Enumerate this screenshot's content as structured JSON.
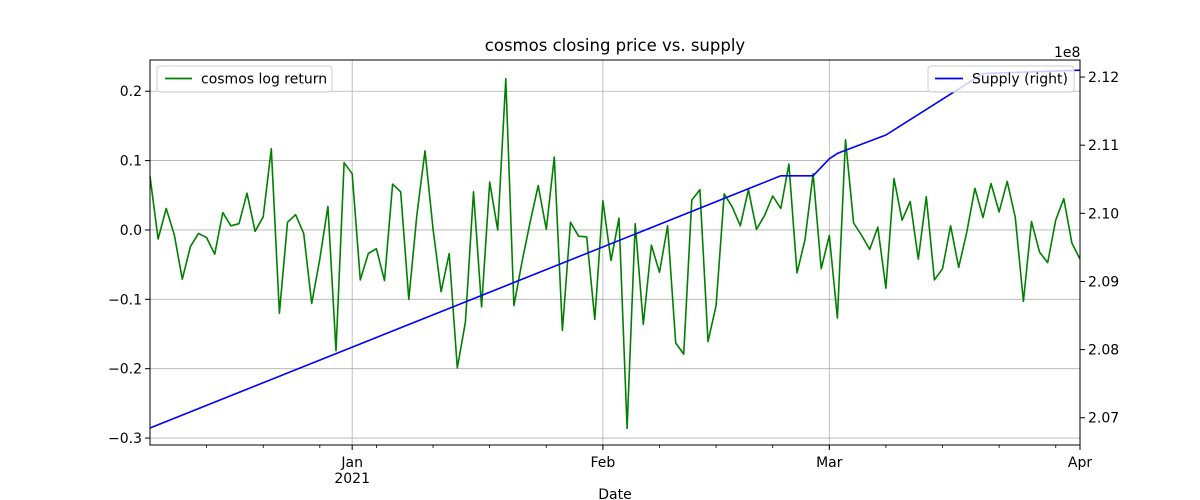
{
  "chart_data": {
    "type": "line",
    "title": "cosmos closing price vs. supply",
    "xlabel": "Date",
    "ylabel_left": "",
    "ylabel_right": "",
    "right_axis_offset_text": "1e8",
    "x_tick_labels": [
      "Jan",
      "Feb",
      "Mar",
      "Apr"
    ],
    "x_year_label": "2021",
    "left_ylim": [
      -0.31,
      0.245
    ],
    "left_yticks": [
      -0.3,
      -0.2,
      -0.1,
      0.0,
      0.1,
      0.2
    ],
    "left_ytick_labels": [
      "−0.3",
      "−0.2",
      "−0.1",
      "0.0",
      "0.1",
      "0.2"
    ],
    "right_ylim": [
      2.066,
      2.1225
    ],
    "right_yticks": [
      2.07,
      2.08,
      2.09,
      2.1,
      2.11,
      2.12
    ],
    "right_ytick_labels": [
      "2.07",
      "2.08",
      "2.09",
      "2.10",
      "2.11",
      "2.12"
    ],
    "grid": true,
    "legend_left": "top-left",
    "legend_right": "top-right",
    "series": [
      {
        "name": "cosmos log return",
        "axis": "left",
        "color": "#008000",
        "x": [
          "2020-12-07",
          "2020-12-08",
          "2020-12-09",
          "2020-12-10",
          "2020-12-11",
          "2020-12-12",
          "2020-12-13",
          "2020-12-14",
          "2020-12-15",
          "2020-12-16",
          "2020-12-17",
          "2020-12-18",
          "2020-12-19",
          "2020-12-20",
          "2020-12-21",
          "2020-12-22",
          "2020-12-23",
          "2020-12-24",
          "2020-12-25",
          "2020-12-26",
          "2020-12-27",
          "2020-12-28",
          "2020-12-29",
          "2020-12-30",
          "2020-12-31",
          "2021-01-01",
          "2021-01-02",
          "2021-01-03",
          "2021-01-04",
          "2021-01-05",
          "2021-01-06",
          "2021-01-07",
          "2021-01-08",
          "2021-01-09",
          "2021-01-10",
          "2021-01-11",
          "2021-01-12",
          "2021-01-13",
          "2021-01-14",
          "2021-01-15",
          "2021-01-16",
          "2021-01-17",
          "2021-01-18",
          "2021-01-19",
          "2021-01-20",
          "2021-01-21",
          "2021-01-22",
          "2021-01-23",
          "2021-01-24",
          "2021-01-25",
          "2021-01-26",
          "2021-01-27",
          "2021-01-28",
          "2021-01-29",
          "2021-01-30",
          "2021-01-31",
          "2021-02-01",
          "2021-02-02",
          "2021-02-03",
          "2021-02-04",
          "2021-02-05",
          "2021-02-06",
          "2021-02-07",
          "2021-02-08",
          "2021-02-09",
          "2021-02-10",
          "2021-02-11",
          "2021-02-12",
          "2021-02-13",
          "2021-02-14",
          "2021-02-15",
          "2021-02-16",
          "2021-02-17",
          "2021-02-18",
          "2021-02-19",
          "2021-02-20",
          "2021-02-21",
          "2021-02-22",
          "2021-02-23",
          "2021-02-24",
          "2021-02-25",
          "2021-02-26",
          "2021-02-27",
          "2021-02-28",
          "2021-03-01",
          "2021-03-02",
          "2021-03-03",
          "2021-03-04",
          "2021-03-05",
          "2021-03-06",
          "2021-03-07",
          "2021-03-08",
          "2021-03-09",
          "2021-03-10",
          "2021-03-11",
          "2021-03-12",
          "2021-03-13",
          "2021-03-14",
          "2021-03-15",
          "2021-03-16",
          "2021-03-17",
          "2021-03-18",
          "2021-03-19",
          "2021-03-20",
          "2021-03-21",
          "2021-03-22",
          "2021-03-23",
          "2021-03-24",
          "2021-03-25",
          "2021-03-26",
          "2021-03-27",
          "2021-03-28",
          "2021-03-29",
          "2021-03-30",
          "2021-03-31",
          "2021-04-01"
        ],
        "values": [
          0.077,
          -0.013,
          0.031,
          -0.007,
          -0.071,
          -0.024,
          -0.005,
          -0.011,
          -0.035,
          0.025,
          0.006,
          0.009,
          0.053,
          -0.002,
          0.019,
          0.117,
          -0.12,
          0.011,
          0.022,
          -0.005,
          -0.106,
          -0.042,
          0.034,
          -0.174,
          0.097,
          0.081,
          -0.072,
          -0.034,
          -0.027,
          -0.073,
          0.066,
          0.055,
          -0.1,
          0.022,
          0.114,
          0.002,
          -0.089,
          -0.034,
          -0.199,
          -0.133,
          0.055,
          -0.111,
          0.069,
          0.0,
          0.218,
          -0.109,
          -0.046,
          0.011,
          0.064,
          0.001,
          0.105,
          -0.145,
          0.011,
          -0.009,
          -0.01,
          -0.129,
          0.042,
          -0.044,
          0.017,
          -0.286,
          0.009,
          -0.136,
          -0.022,
          -0.061,
          0.006,
          -0.163,
          -0.179,
          0.043,
          0.058,
          -0.161,
          -0.109,
          0.052,
          0.033,
          0.006,
          0.058,
          0.001,
          0.021,
          0.049,
          0.031,
          0.095,
          -0.062,
          -0.014,
          0.081,
          -0.056,
          -0.008,
          -0.127,
          0.13,
          0.01,
          -0.008,
          -0.028,
          0.004,
          -0.084,
          0.074,
          0.014,
          0.041,
          -0.042,
          0.048,
          -0.072,
          -0.056,
          0.006,
          -0.054,
          -0.003,
          0.06,
          0.018,
          0.067,
          0.026,
          0.07,
          0.018,
          -0.103,
          0.012,
          -0.032,
          -0.047,
          0.014,
          0.045,
          -0.019,
          -0.042
        ]
      },
      {
        "name": "Supply (right)",
        "axis": "right",
        "color": "#0000ff",
        "x": [
          "2020-12-07",
          "2021-02-23",
          "2021-02-27",
          "2021-03-01",
          "2021-03-02",
          "2021-03-08",
          "2021-03-18",
          "2021-03-20",
          "2021-04-01"
        ],
        "values": [
          2.0685,
          2.1055,
          2.1055,
          2.108,
          2.1088,
          2.1115,
          2.119,
          2.1205,
          2.121
        ]
      }
    ]
  }
}
